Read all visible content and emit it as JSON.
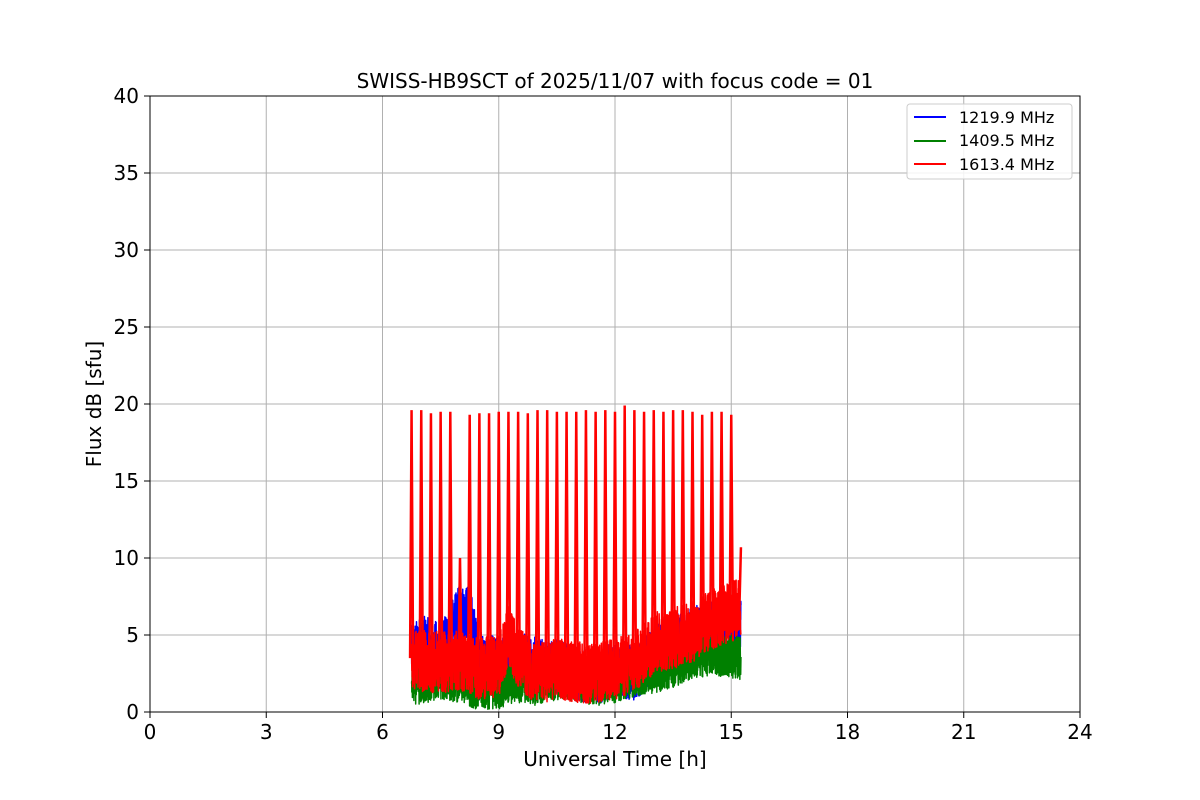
{
  "chart_data": {
    "type": "line",
    "title": "SWISS-HB9SCT of 2025/11/07 with focus code = 01",
    "xlabel": "Universal Time [h]",
    "ylabel": "Flux dB [sfu]",
    "xlim": [
      0,
      24
    ],
    "ylim": [
      0,
      40
    ],
    "xticks": [
      0,
      3,
      6,
      9,
      12,
      15,
      18,
      21,
      24
    ],
    "yticks": [
      0,
      5,
      10,
      15,
      20,
      25,
      30,
      35,
      40
    ],
    "grid": true,
    "legend_position": "top-right",
    "time_range": [
      6.75,
      15.25
    ],
    "spike_times": [
      6.75,
      7.0,
      7.25,
      7.5,
      7.75,
      8.0,
      8.25,
      8.5,
      8.75,
      9.0,
      9.25,
      9.5,
      9.75,
      10.0,
      10.25,
      10.5,
      10.75,
      11.0,
      11.25,
      11.5,
      11.75,
      12.0,
      12.25,
      12.5,
      12.75,
      13.0,
      13.25,
      13.5,
      13.75,
      14.0,
      14.25,
      14.5,
      14.75,
      15.0
    ],
    "series": [
      {
        "name": "1219.9 MHz",
        "color": "#0000ff",
        "x": [
          6.75,
          7.0,
          7.5,
          8.0,
          8.25,
          8.5,
          9.0,
          9.5,
          10.0,
          10.5,
          11.0,
          11.5,
          12.0,
          12.5,
          13.0,
          13.5,
          14.0,
          14.5,
          15.0,
          15.25
        ],
        "y": [
          3.8,
          4.5,
          4.0,
          6.5,
          6.4,
          3.5,
          3.0,
          3.5,
          3.0,
          3.0,
          2.5,
          2.2,
          2.8,
          2.5,
          3.8,
          4.5,
          5.0,
          5.5,
          5.5,
          5.8
        ]
      },
      {
        "name": "1409.5 MHz",
        "color": "#008000",
        "x": [
          6.75,
          7.0,
          7.5,
          8.0,
          8.5,
          9.0,
          9.5,
          10.0,
          10.5,
          11.0,
          11.5,
          12.0,
          12.5,
          13.0,
          13.5,
          14.0,
          14.5,
          15.0,
          15.25
        ],
        "y": [
          2.0,
          1.8,
          2.2,
          2.0,
          1.5,
          1.6,
          2.0,
          1.8,
          2.2,
          2.0,
          1.8,
          2.0,
          2.4,
          2.6,
          3.0,
          3.5,
          3.8,
          3.6,
          3.5
        ]
      },
      {
        "name": "1613.4 MHz",
        "color": "#ff0000",
        "x": [
          6.75,
          7.0,
          7.5,
          8.0,
          8.5,
          9.0,
          9.25,
          9.5,
          10.0,
          10.5,
          11.0,
          11.5,
          12.0,
          12.5,
          13.0,
          13.5,
          14.0,
          14.5,
          15.0,
          15.25
        ],
        "y": [
          3.5,
          3.3,
          3.2,
          3.4,
          2.8,
          3.0,
          5.0,
          3.5,
          2.5,
          2.8,
          2.6,
          2.5,
          2.8,
          3.2,
          4.5,
          4.8,
          5.2,
          6.0,
          6.5,
          6.8
        ],
        "spike_peaks": [
          19.6,
          19.6,
          19.4,
          19.5,
          19.5,
          10.0,
          19.3,
          19.4,
          19.4,
          19.5,
          19.5,
          19.5,
          19.4,
          19.6,
          19.6,
          19.5,
          19.5,
          19.5,
          19.6,
          19.5,
          19.6,
          19.5,
          19.9,
          19.6,
          19.5,
          19.6,
          19.5,
          19.6,
          19.6,
          19.5,
          19.3,
          19.5,
          19.5,
          19.3
        ]
      }
    ]
  }
}
